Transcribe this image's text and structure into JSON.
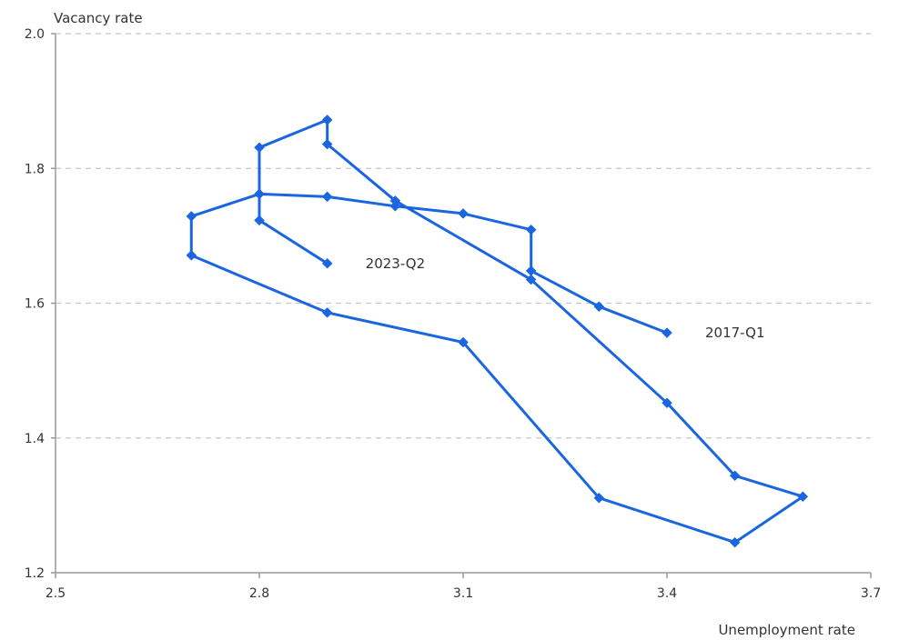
{
  "chart_data": {
    "type": "line",
    "xlabel": "Unemployment rate",
    "ylabel": "Vacancy rate",
    "xlim": [
      2.5,
      3.7
    ],
    "ylim": [
      1.2,
      2.0
    ],
    "x_ticks": [
      "2.5",
      "2.8",
      "3.1",
      "3.4",
      "3.7"
    ],
    "y_ticks": [
      "1.2",
      "1.4",
      "1.6",
      "1.8",
      "2.0"
    ],
    "grid": "horizontal dashed",
    "series_color": "#1a66e0",
    "series": [
      {
        "points": [
          {
            "x": 3.4,
            "y": 1.556
          },
          {
            "x": 3.3,
            "y": 1.595
          },
          {
            "x": 3.2,
            "y": 1.648
          },
          {
            "x": 3.2,
            "y": 1.709
          },
          {
            "x": 3.1,
            "y": 1.733
          },
          {
            "x": 3.0,
            "y": 1.744
          },
          {
            "x": 2.9,
            "y": 1.758
          },
          {
            "x": 2.8,
            "y": 1.762
          },
          {
            "x": 2.7,
            "y": 1.729
          },
          {
            "x": 2.7,
            "y": 1.671
          },
          {
            "x": 2.9,
            "y": 1.586
          },
          {
            "x": 3.1,
            "y": 1.542
          },
          {
            "x": 3.3,
            "y": 1.311
          },
          {
            "x": 3.5,
            "y": 1.245
          },
          {
            "x": 3.6,
            "y": 1.313
          },
          {
            "x": 3.5,
            "y": 1.344
          },
          {
            "x": 3.4,
            "y": 1.452
          },
          {
            "x": 3.2,
            "y": 1.635
          },
          {
            "x": 3.0,
            "y": 1.752
          },
          {
            "x": 2.9,
            "y": 1.836
          },
          {
            "x": 2.9,
            "y": 1.872
          },
          {
            "x": 2.8,
            "y": 1.831
          },
          {
            "x": 2.8,
            "y": 1.762
          },
          {
            "x": 2.8,
            "y": 1.723
          },
          {
            "x": 2.9,
            "y": 1.659
          }
        ]
      }
    ],
    "annotations": [
      {
        "text": "2017-Q1",
        "x": 3.4,
        "y": 1.556
      },
      {
        "text": "2023-Q2",
        "x": 2.9,
        "y": 1.659
      }
    ]
  }
}
